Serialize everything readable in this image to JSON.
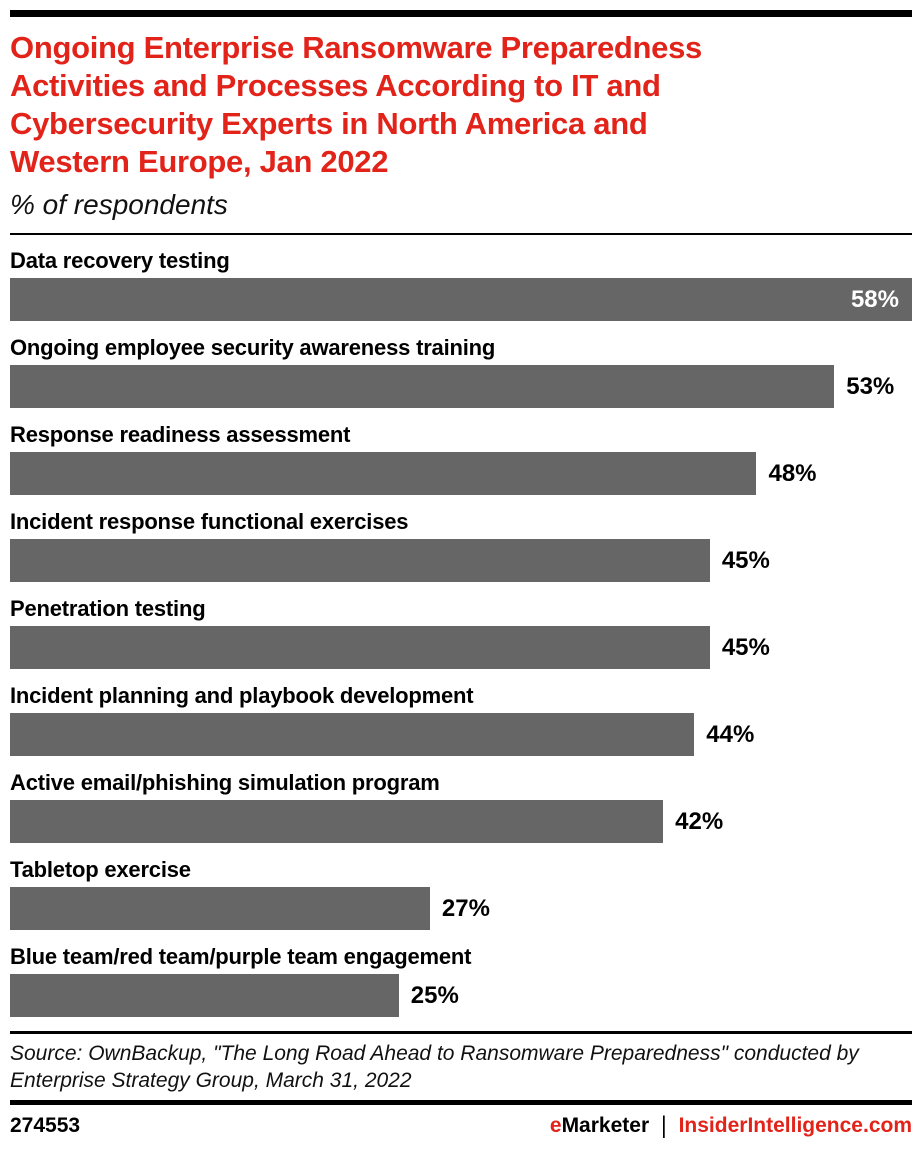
{
  "header": {
    "title": "Ongoing Enterprise Ransomware Preparedness\nActivities and Processes According to IT and\nCybersecurity Experts in North America and\nWestern Europe, Jan 2022",
    "subtitle": "% of respondents"
  },
  "chart_data": {
    "type": "bar",
    "orientation": "horizontal",
    "title": "Ongoing Enterprise Ransomware Preparedness Activities and Processes According to IT and Cybersecurity Experts in North America and Western Europe, Jan 2022",
    "subtitle": "% of respondents",
    "categories": [
      "Data recovery testing",
      "Ongoing employee security awareness training",
      "Response readiness assessment",
      "Incident response functional exercises",
      "Penetration testing",
      "Incident planning and playbook development",
      "Active email/phishing simulation program",
      "Tabletop exercise",
      "Blue team/red team/purple team engagement"
    ],
    "values": [
      58,
      53,
      48,
      45,
      45,
      44,
      42,
      27,
      25
    ],
    "value_labels": [
      "58%",
      "53%",
      "48%",
      "45%",
      "45%",
      "44%",
      "42%",
      "27%",
      "25%"
    ],
    "value_suffix": "%",
    "xlim": [
      0,
      58
    ],
    "bar_color": "#666666",
    "grid": false,
    "legend": "none",
    "value_label_position": "outside-right, inside-white for max bar"
  },
  "footer": {
    "source": "Source: OwnBackup, \"The Long Road Ahead to Ransomware Preparedness\" conducted by\nEnterprise Strategy Group, March 31, 2022",
    "chart_id": "274553",
    "brand": {
      "e": "e",
      "rest": "Marketer",
      "separator": "|",
      "site": "InsiderIntelligence.com"
    }
  },
  "colors": {
    "accent_red": "#e2231a",
    "bar_gray": "#666666",
    "rule_black": "#000000"
  }
}
